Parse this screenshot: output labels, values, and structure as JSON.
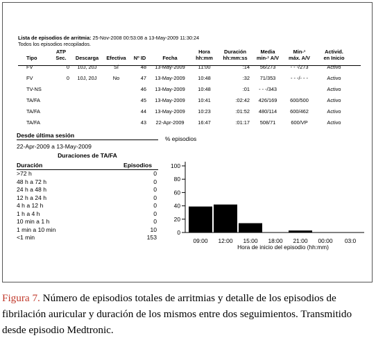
{
  "report": {
    "list_label": "Lista de episodios de arritmia:",
    "list_range": "25-Nov-2008 00:53:08 a 13-May-2009 11:30:24",
    "subtitle": "Todos los episodios recopilados."
  },
  "episodes_table": {
    "columns": [
      {
        "line1": "",
        "line2": "Tipo"
      },
      {
        "line1": "ATP",
        "line2": "Sec."
      },
      {
        "line1": "",
        "line2": "Descarga"
      },
      {
        "line1": "",
        "line2": "Efectiva"
      },
      {
        "line1": "",
        "line2": "Nº ID"
      },
      {
        "line1": "",
        "line2": "Fecha"
      },
      {
        "line1": "Hora",
        "line2": "hh:mm"
      },
      {
        "line1": "Duración",
        "line2": "hh:mm:ss"
      },
      {
        "line1": "Media",
        "line2": "min-¹ A/V"
      },
      {
        "line1": "Min-¹",
        "line2": "máx. A/V"
      },
      {
        "line1": "Activid.",
        "line2": "en Inicio"
      }
    ],
    "rows": [
      {
        "tipo": "FV",
        "atp": "0",
        "descarga": "10J, 20J",
        "efectiva": "Sí",
        "id": "48",
        "fecha": "13-May-2009",
        "hora": "11:00",
        "duracion": ":14",
        "media": "56/273",
        "max": "- - -/273",
        "actividad": "Activo"
      },
      {
        "tipo": "FV",
        "atp": "0",
        "descarga": "10J, 20J",
        "efectiva": "No",
        "id": "47",
        "fecha": "13-May-2009",
        "hora": "10:48",
        "duracion": ":32",
        "media": "71/353",
        "max": "- - -/- - -",
        "actividad": "Activo"
      },
      {
        "tipo": "TV-NS",
        "atp": "",
        "descarga": "",
        "efectiva": "",
        "id": "46",
        "fecha": "13-May-2009",
        "hora": "10:48",
        "duracion": ":01",
        "media": "- - -/343",
        "max": "",
        "actividad": "Activo"
      },
      {
        "tipo": "TA/FA",
        "atp": "",
        "descarga": "",
        "efectiva": "",
        "id": "45",
        "fecha": "13-May-2009",
        "hora": "10:41",
        "duracion": ":02:42",
        "media": "426/169",
        "max": "600/500",
        "actividad": "Activo"
      },
      {
        "tipo": "TA/FA",
        "atp": "",
        "descarga": "",
        "efectiva": "",
        "id": "44",
        "fecha": "13-May-2009",
        "hora": "10:23",
        "duracion": ":01:52",
        "media": "480/114",
        "max": "600/462",
        "actividad": "Activo"
      },
      {
        "tipo": "TA/FA",
        "atp": "",
        "descarga": "",
        "efectiva": "",
        "id": "43",
        "fecha": "22-Apr-2009",
        "hora": "16:47",
        "duracion": ":01:17",
        "media": "508/71",
        "max": "600/VP",
        "actividad": "Activo"
      }
    ]
  },
  "desde": {
    "title": "Desde última sesión",
    "range": "22-Apr-2009 a 13-May-2009",
    "durations_title": "Duraciones de TA/FA",
    "col_duracion": "Duración",
    "col_episodios": "Episodios",
    "rows": [
      {
        "label": ">72 h",
        "count": "0"
      },
      {
        "label": "48 h a 72 h",
        "count": "0"
      },
      {
        "label": "24 h a 48 h",
        "count": "0"
      },
      {
        "label": "12 h a 24 h",
        "count": "0"
      },
      {
        "label": "4 h a 12 h",
        "count": "0"
      },
      {
        "label": "1 h a 4 h",
        "count": "0"
      },
      {
        "label": "10 min a 1 h",
        "count": "0"
      },
      {
        "label": "1 min a 10 min",
        "count": "10"
      },
      {
        "label": "<1 min",
        "count": "153"
      }
    ]
  },
  "chart_data": {
    "type": "bar",
    "ylabel": "% episodios",
    "xlabel": "Hora de inicio del episodio (hh:mm)",
    "ylim": [
      0,
      100
    ],
    "yticks": [
      "100",
      "80",
      "60",
      "40",
      "20",
      "0"
    ],
    "xticks": [
      "09:00",
      "12:00",
      "15:00",
      "18:00",
      "21:00",
      "00:00",
      "03:0"
    ],
    "bins": [
      {
        "start": "08:00",
        "end": "11:00",
        "value": 39
      },
      {
        "start": "11:00",
        "end": "14:00",
        "value": 42
      },
      {
        "start": "14:00",
        "end": "17:00",
        "value": 14
      },
      {
        "start": "17:00",
        "end": "20:00",
        "value": 0
      },
      {
        "start": "20:00",
        "end": "23:00",
        "value": 3
      },
      {
        "start": "23:00",
        "end": "02:00",
        "value": 0
      },
      {
        "start": "02:00",
        "end": "05:00",
        "value": 0
      }
    ],
    "bar_color": "#000000",
    "grid": false
  },
  "caption": {
    "figure_label": "Figura 7.",
    "text": "Número de episodios totales de arritmias y detalle de los episodios de fibrilación auricular y duración de los mismos entre dos seguimientos. Transmitido desde episodio Medtronic."
  },
  "colors": {
    "caption_label": "#c0392b"
  }
}
